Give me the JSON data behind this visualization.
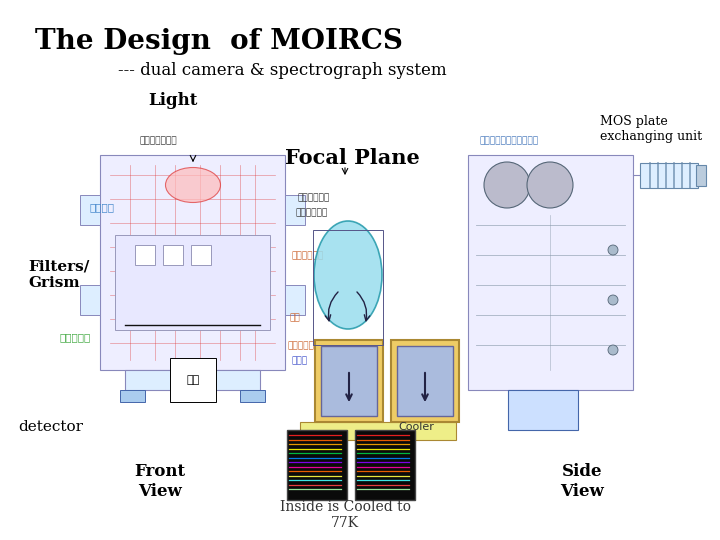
{
  "title": "The Design  of MOIRCS",
  "subtitle": "--- dual camera & spectrograph system",
  "label_light": "Light",
  "label_mos": "MOS plate\nexchanging unit",
  "label_focal": "Focal Plane",
  "label_filters": "Filters/\nGrism",
  "label_detector": "detector",
  "label_front": "Front\nView",
  "label_side": "Side\nView",
  "label_cooled": "Inside is Cooled to\n77K",
  "bg_color": "#ffffff",
  "title_fontsize": 20,
  "subtitle_fontsize": 12,
  "label_fontsize": 11,
  "small_fontsize": 9,
  "japanese_fontsize": 6.5
}
